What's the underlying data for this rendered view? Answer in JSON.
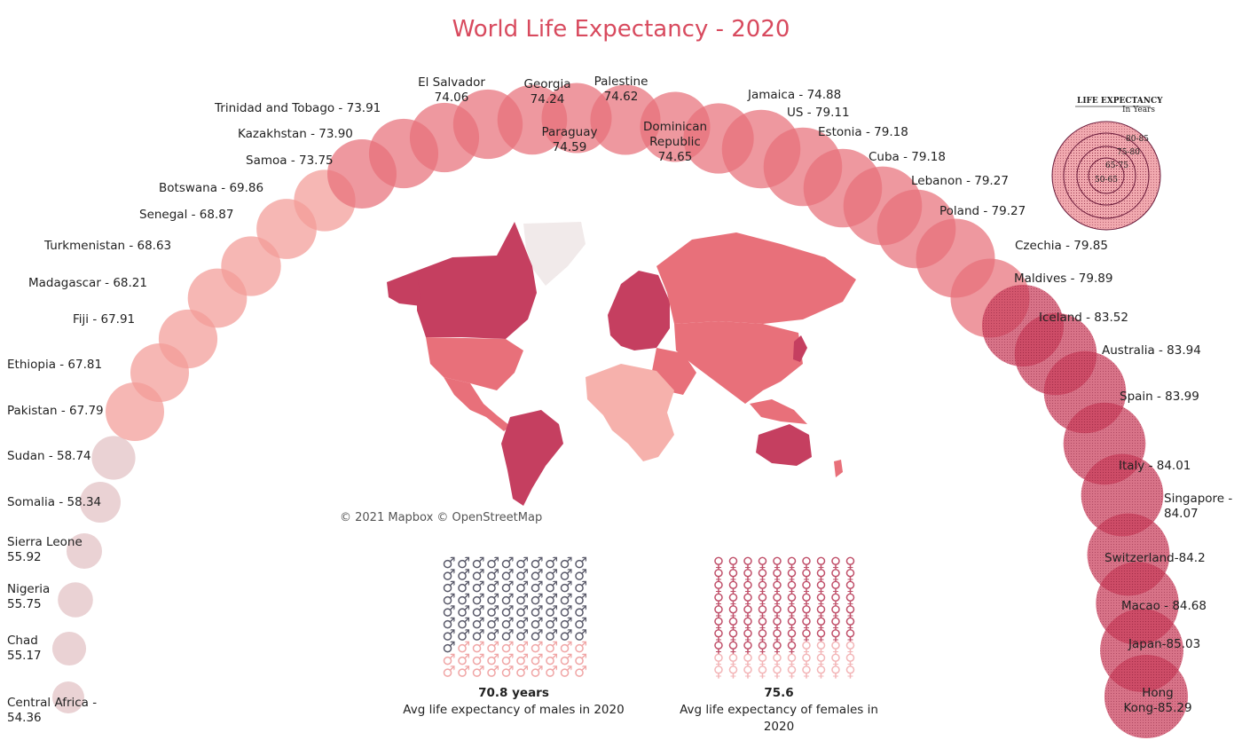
{
  "chart_data": {
    "type": "scatter",
    "title": "World Life Expectancy - 2020",
    "series": [
      {
        "country": "Central Africa",
        "label_lines": [
          "Central Africa -",
          "54.36"
        ],
        "value": 54.36
      },
      {
        "country": "Chad",
        "label_lines": [
          "Chad",
          "55.17"
        ],
        "value": 55.17
      },
      {
        "country": "Nigeria",
        "label_lines": [
          "Nigeria",
          "55.75"
        ],
        "value": 55.75
      },
      {
        "country": "Sierra Leone",
        "label_lines": [
          "Sierra Leone",
          "55.92"
        ],
        "value": 55.92
      },
      {
        "country": "Somalia",
        "label_lines": [
          "Somalia - 58.34"
        ],
        "value": 58.34
      },
      {
        "country": "Sudan",
        "label_lines": [
          "Sudan - 58.74"
        ],
        "value": 58.74
      },
      {
        "country": "Pakistan",
        "label_lines": [
          "Pakistan - 67.79"
        ],
        "value": 67.79
      },
      {
        "country": "Ethiopia",
        "label_lines": [
          "Ethiopia - 67.81"
        ],
        "value": 67.81
      },
      {
        "country": "Fiji",
        "label_lines": [
          "Fiji - 67.91"
        ],
        "value": 67.91
      },
      {
        "country": "Madagascar",
        "label_lines": [
          "Madagascar - 68.21"
        ],
        "value": 68.21
      },
      {
        "country": "Turkmenistan",
        "label_lines": [
          "Turkmenistan - 68.63"
        ],
        "value": 68.63
      },
      {
        "country": "Senegal",
        "label_lines": [
          "Senegal - 68.87"
        ],
        "value": 68.87
      },
      {
        "country": "Botswana",
        "label_lines": [
          "Botswana - 69.86"
        ],
        "value": 69.86
      },
      {
        "country": "Samoa",
        "label_lines": [
          "Samoa - 73.75"
        ],
        "value": 73.75
      },
      {
        "country": "Kazakhstan",
        "label_lines": [
          "Kazakhstan - 73.90"
        ],
        "value": 73.9
      },
      {
        "country": "Trinidad and Tobago",
        "label_lines": [
          "Trinidad and Tobago - 73.91"
        ],
        "value": 73.91
      },
      {
        "country": "El Salvador",
        "label_lines": [
          "El Salvador",
          "74.06"
        ],
        "value": 74.06
      },
      {
        "country": "Georgia",
        "label_lines": [
          "Georgia",
          "74.24"
        ],
        "value": 74.24
      },
      {
        "country": "Paraguay",
        "label_lines": [
          "Paraguay",
          "74.59"
        ],
        "value": 74.59
      },
      {
        "country": "Palestine",
        "label_lines": [
          "Palestine",
          "74.62"
        ],
        "value": 74.62
      },
      {
        "country": "Dominican Republic",
        "label_lines": [
          "Dominican",
          "Republic",
          "74.65"
        ],
        "value": 74.65
      },
      {
        "country": "Jamaica",
        "label_lines": [
          "Jamaica - 74.88"
        ],
        "value": 74.88
      },
      {
        "country": "US",
        "label_lines": [
          "US - 79.11"
        ],
        "value": 79.11
      },
      {
        "country": "Estonia",
        "label_lines": [
          "Estonia - 79.18"
        ],
        "value": 79.18
      },
      {
        "country": "Cuba",
        "label_lines": [
          "Cuba - 79.18"
        ],
        "value": 79.18
      },
      {
        "country": "Lebanon",
        "label_lines": [
          "Lebanon - 79.27"
        ],
        "value": 79.27
      },
      {
        "country": "Poland",
        "label_lines": [
          "Poland - 79.27"
        ],
        "value": 79.27
      },
      {
        "country": "Czechia",
        "label_lines": [
          "Czechia - 79.85"
        ],
        "value": 79.85
      },
      {
        "country": "Maldives",
        "label_lines": [
          "Maldives - 79.89"
        ],
        "value": 79.89
      },
      {
        "country": "Iceland",
        "label_lines": [
          "Iceland - 83.52"
        ],
        "value": 83.52
      },
      {
        "country": "Australia",
        "label_lines": [
          "Australia - 83.94"
        ],
        "value": 83.94
      },
      {
        "country": "Spain",
        "label_lines": [
          "Spain - 83.99"
        ],
        "value": 83.99
      },
      {
        "country": "Italy",
        "label_lines": [
          "Italy - 84.01"
        ],
        "value": 84.01
      },
      {
        "country": "Singapore",
        "label_lines": [
          "Singapore -",
          "84.07"
        ],
        "value": 84.07
      },
      {
        "country": "Switzerland",
        "label_lines": [
          "Switzerland-84.2"
        ],
        "value": 84.2
      },
      {
        "country": "Macao",
        "label_lines": [
          "Macao - 84.68"
        ],
        "value": 84.68
      },
      {
        "country": "Japan",
        "label_lines": [
          "Japan-85.03"
        ],
        "value": 85.03
      },
      {
        "country": "Hong Kong",
        "label_lines": [
          "Hong",
          "Kong-85.29"
        ],
        "value": 85.29
      }
    ],
    "legend": {
      "title": "LIFE EXPECTANCY",
      "subtitle": "In Years",
      "rings": [
        "80-85",
        "75-80",
        "65-75",
        "50-65"
      ],
      "placement": "top-right"
    },
    "colors": {
      "low": "#e3c3c6",
      "mid": "#f29b97",
      "high": "#e8707a",
      "top": "#c93d5a",
      "title": "#d84a5e"
    }
  },
  "map": {
    "attribution": "© 2021 Mapbox © OpenStreetMap",
    "colors": {
      "high": "#c53f60",
      "mid": "#e8707a",
      "low": "#f6b1ac",
      "nodata": "#f1eaea"
    }
  },
  "males": {
    "value": "70.8 years",
    "caption": "Avg life expectancy of males in 2020",
    "symbol": "♂",
    "filled_fraction": 0.708,
    "color_filled": "#5a5a6a",
    "color_empty": "#f0a6a6"
  },
  "females": {
    "value": "75.6",
    "caption_lines": [
      "Avg life expectancy of females in",
      "2020"
    ],
    "symbol": "♀",
    "filled_fraction": 0.756,
    "color_filled": "#c0506a",
    "color_empty": "#f3b6b8"
  }
}
